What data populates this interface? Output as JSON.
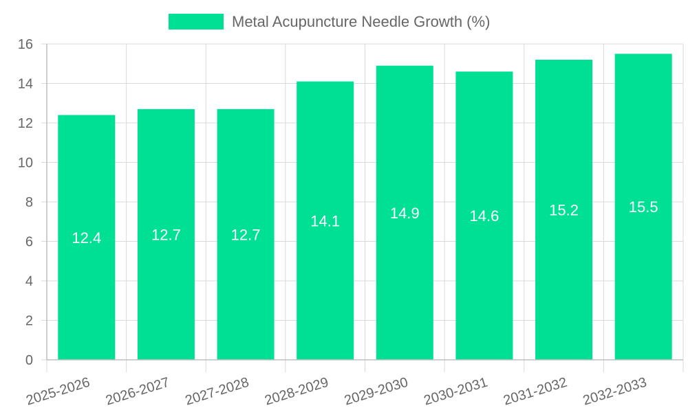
{
  "chart_data": {
    "type": "bar",
    "categories": [
      "2025-2026",
      "2026-2027",
      "2027-2028",
      "2028-2029",
      "2029-2030",
      "2030-2031",
      "2031-2032",
      "2032-2033"
    ],
    "series": [
      {
        "name": "Metal Acupuncture Needle Growth (%)",
        "values": [
          12.4,
          12.7,
          12.7,
          14.1,
          14.9,
          14.6,
          15.2,
          15.5
        ],
        "color": "#00e094"
      }
    ],
    "data_labels": [
      "12.4",
      "12.7",
      "12.7",
      "14.1",
      "14.9",
      "14.6",
      "15.2",
      "15.5"
    ],
    "ylim": [
      0,
      16
    ],
    "yticks": [
      0,
      2,
      4,
      6,
      8,
      10,
      12,
      14,
      16
    ],
    "ytick_labels": [
      "0",
      "2",
      "4",
      "6",
      "8",
      "10",
      "12",
      "14",
      "16"
    ],
    "grid": true,
    "legend_position": "top-center",
    "xtick_rotation": "slanted"
  }
}
